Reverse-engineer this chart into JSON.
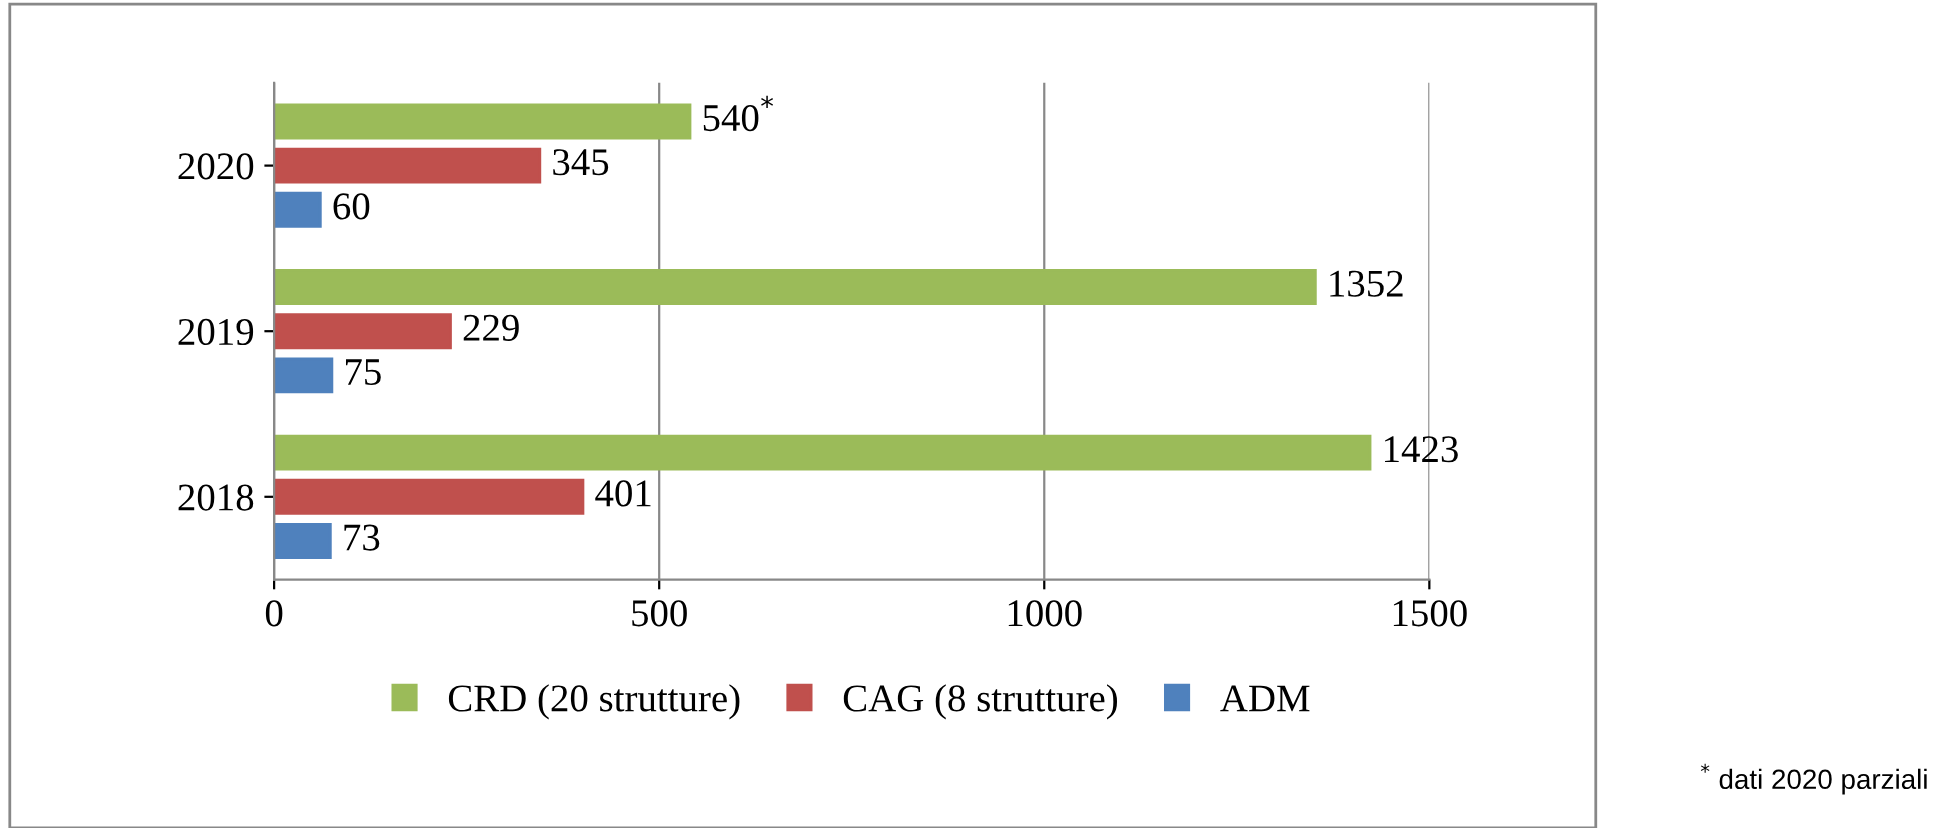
{
  "chart_data": {
    "type": "bar",
    "orientation": "horizontal",
    "categories": [
      "2020",
      "2019",
      "2018"
    ],
    "series": [
      {
        "name": "CRD (20 strutture)",
        "color": "#9bbb59",
        "values": [
          540,
          1352,
          1423
        ],
        "value_labels": [
          "540$^{*}$",
          "1352",
          "1423"
        ]
      },
      {
        "name": "CAG (8 strutture)",
        "color": "#c0504d",
        "values": [
          345,
          229,
          401
        ],
        "value_labels": [
          "345",
          "229",
          "401"
        ]
      },
      {
        "name": "ADM",
        "color": "#4f81bd",
        "values": [
          60,
          75,
          73
        ],
        "value_labels": [
          "60",
          "75",
          "73"
        ]
      }
    ],
    "xlim": [
      0,
      1500
    ],
    "xticks": [
      0,
      500,
      1000,
      1500
    ],
    "grid": "x",
    "legend": "bottom",
    "annotations": [
      "$^{*}$ dati 2020 parziali"
    ]
  }
}
